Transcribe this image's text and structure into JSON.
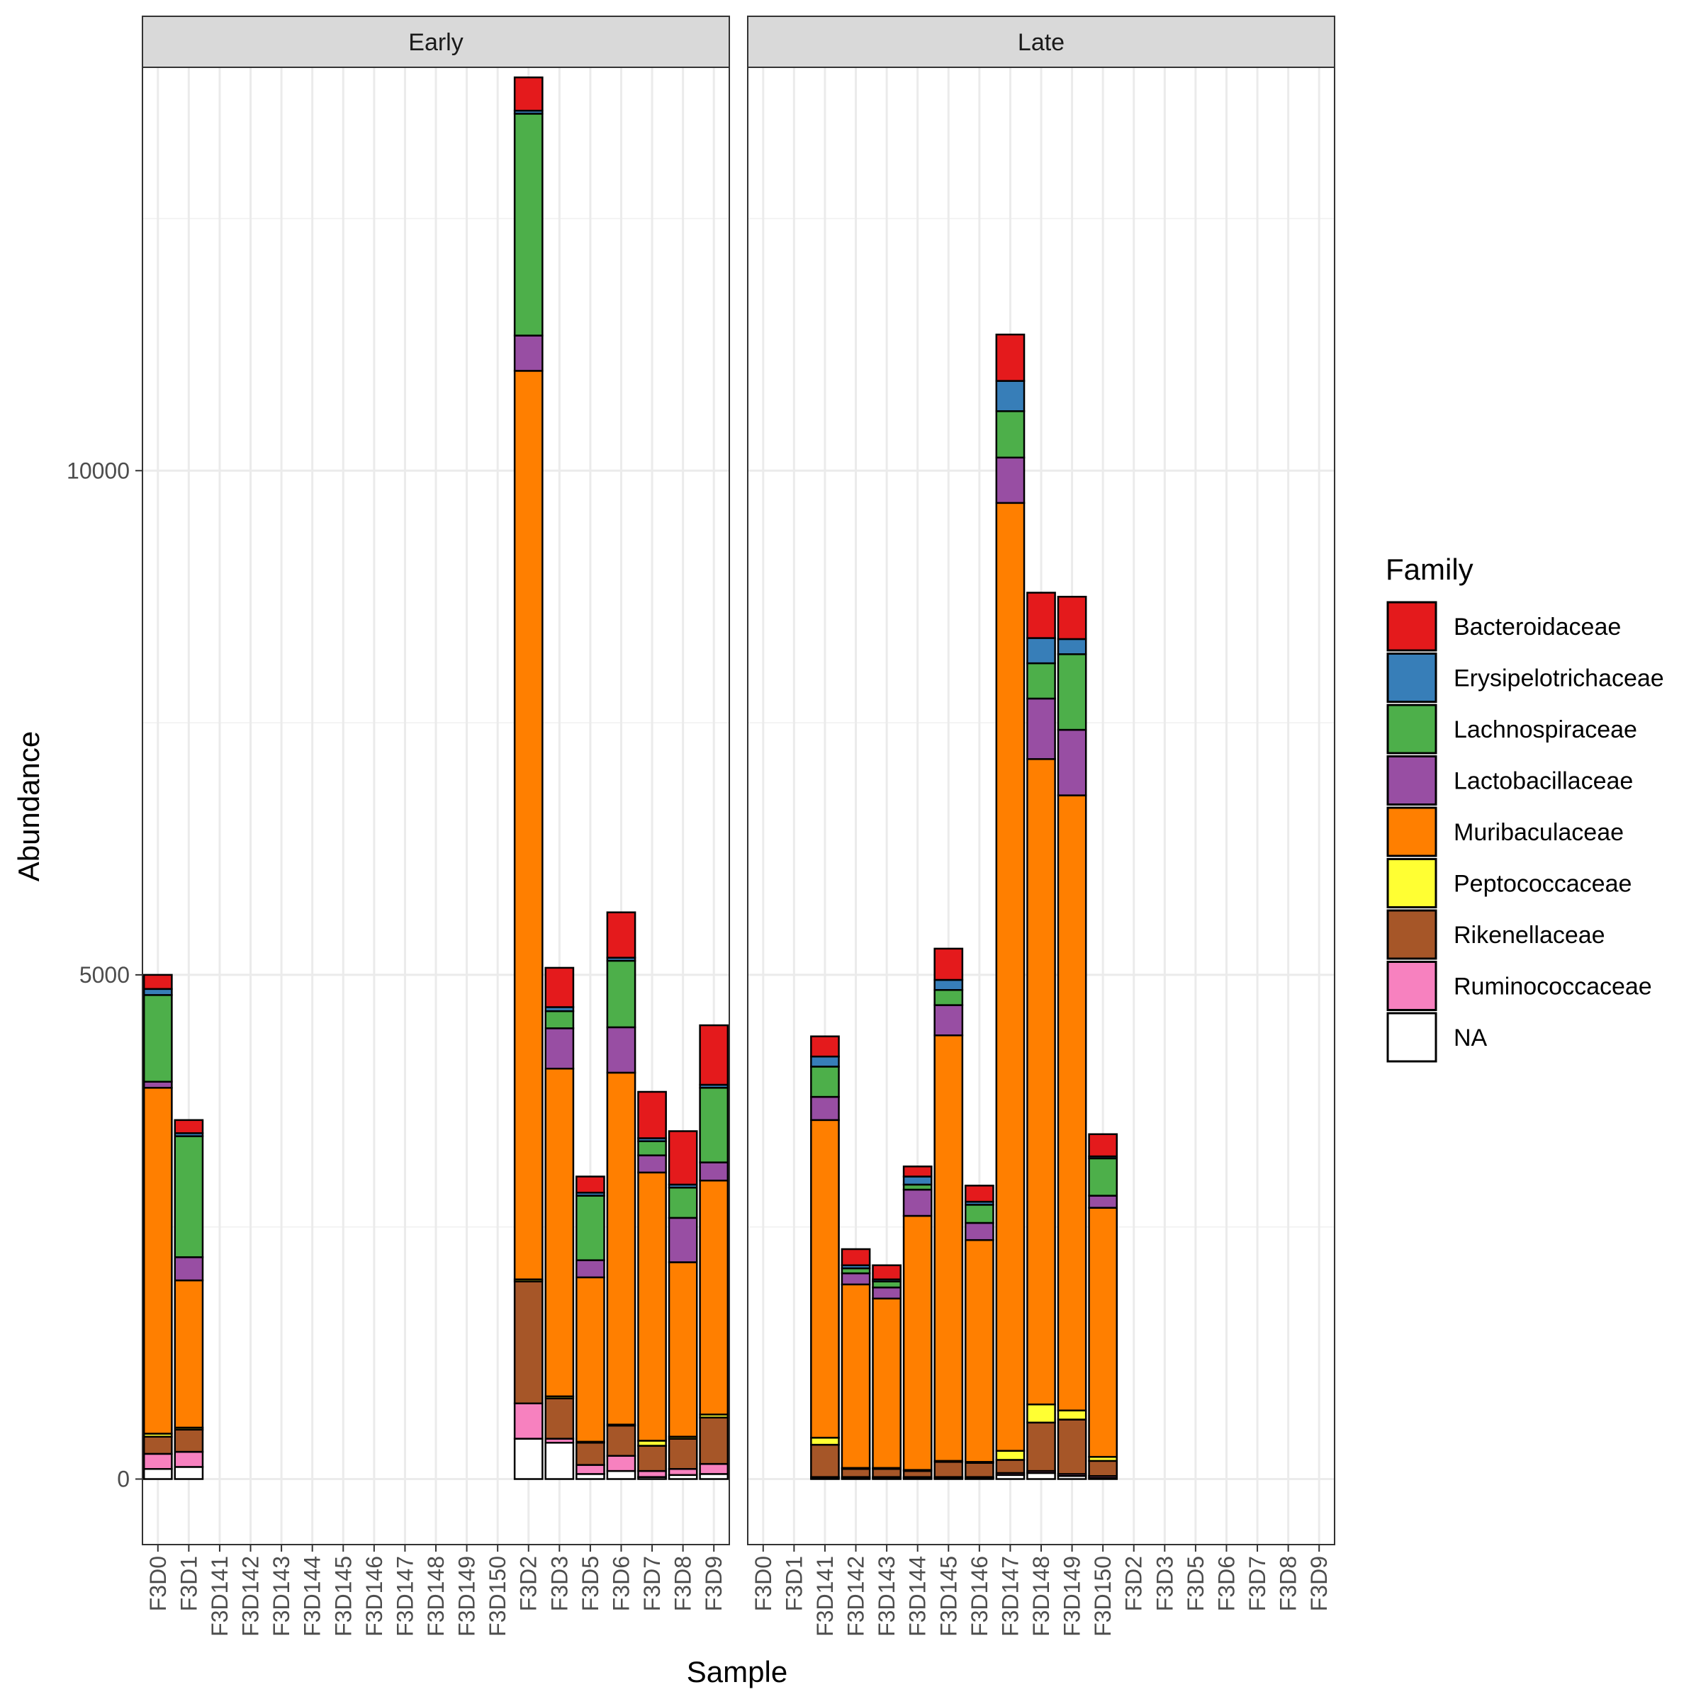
{
  "chart_data": {
    "type": "bar",
    "stacked": true,
    "xlabel": "Sample",
    "ylabel": "Abundance",
    "ylim": [
      -650,
      14000
    ],
    "y_ticks": [
      0,
      5000,
      10000
    ],
    "y_tick_labels": [
      "0",
      "5000",
      "10000"
    ],
    "grid": true,
    "legend_position": "right",
    "legend_title": "Family",
    "legend": [
      {
        "name": "Bacteroidaceae",
        "color": "#E41A1C"
      },
      {
        "name": "Erysipelotrichaceae",
        "color": "#377EB8"
      },
      {
        "name": "Lachnospiraceae",
        "color": "#4DAF4A"
      },
      {
        "name": "Lactobacillaceae",
        "color": "#984EA3"
      },
      {
        "name": "Muribaculaceae",
        "color": "#FF7F00"
      },
      {
        "name": "Peptococcaceae",
        "color": "#FFFF33"
      },
      {
        "name": "Rikenellaceae",
        "color": "#A65628"
      },
      {
        "name": "Ruminococcaceae",
        "color": "#F781BF"
      },
      {
        "name": "NA",
        "color": "#FFFFFF"
      }
    ],
    "categories": [
      "F3D0",
      "F3D1",
      "F3D141",
      "F3D142",
      "F3D143",
      "F3D144",
      "F3D145",
      "F3D146",
      "F3D147",
      "F3D148",
      "F3D149",
      "F3D150",
      "F3D2",
      "F3D3",
      "F3D5",
      "F3D6",
      "F3D7",
      "F3D8",
      "F3D9"
    ],
    "facets": [
      {
        "label": "Early",
        "bars": {
          "F3D0": [
            [
              "NA",
              100
            ],
            [
              "Ruminococcaceae",
              150
            ],
            [
              "Rikenellaceae",
              170
            ],
            [
              "Peptococcaceae",
              30
            ],
            [
              "Muribaculaceae",
              3430
            ],
            [
              "Lactobacillaceae",
              60
            ],
            [
              "Lachnospiraceae",
              860
            ],
            [
              "Erysipelotrichaceae",
              60
            ],
            [
              "Bacteroidaceae",
              140
            ]
          ],
          "F3D1": [
            [
              "NA",
              120
            ],
            [
              "Ruminococcaceae",
              150
            ],
            [
              "Rikenellaceae",
              220
            ],
            [
              "Peptococcaceae",
              20
            ],
            [
              "Muribaculaceae",
              1460
            ],
            [
              "Lactobacillaceae",
              230
            ],
            [
              "Lachnospiraceae",
              1200
            ],
            [
              "Erysipelotrichaceae",
              30
            ],
            [
              "Bacteroidaceae",
              130
            ]
          ],
          "F3D2": [
            [
              "NA",
              400
            ],
            [
              "Ruminococcaceae",
              350
            ],
            [
              "Rikenellaceae",
              1210
            ],
            [
              "Peptococcaceae",
              20
            ],
            [
              "Muribaculaceae",
              9010
            ],
            [
              "Lactobacillaceae",
              350
            ],
            [
              "Lachnospiraceae",
              2200
            ],
            [
              "Erysipelotrichaceae",
              30
            ],
            [
              "Bacteroidaceae",
              330
            ]
          ],
          "F3D3": [
            [
              "NA",
              360
            ],
            [
              "Ruminococcaceae",
              40
            ],
            [
              "Rikenellaceae",
              400
            ],
            [
              "Peptococcaceae",
              20
            ],
            [
              "Muribaculaceae",
              3250
            ],
            [
              "Lactobacillaceae",
              400
            ],
            [
              "Lachnospiraceae",
              170
            ],
            [
              "Erysipelotrichaceae",
              40
            ],
            [
              "Bacteroidaceae",
              390
            ]
          ],
          "F3D5": [
            [
              "NA",
              50
            ],
            [
              "Ruminococcaceae",
              90
            ],
            [
              "Rikenellaceae",
              220
            ],
            [
              "Peptococcaceae",
              10
            ],
            [
              "Muribaculaceae",
              1630
            ],
            [
              "Lactobacillaceae",
              170
            ],
            [
              "Lachnospiraceae",
              640
            ],
            [
              "Erysipelotrichaceae",
              30
            ],
            [
              "Bacteroidaceae",
              160
            ]
          ],
          "F3D6": [
            [
              "NA",
              80
            ],
            [
              "Ruminococcaceae",
              150
            ],
            [
              "Rikenellaceae",
              300
            ],
            [
              "Peptococcaceae",
              10
            ],
            [
              "Muribaculaceae",
              3490
            ],
            [
              "Lactobacillaceae",
              450
            ],
            [
              "Lachnospiraceae",
              660
            ],
            [
              "Erysipelotrichaceae",
              30
            ],
            [
              "Bacteroidaceae",
              450
            ]
          ],
          "F3D7": [
            [
              "NA",
              20
            ],
            [
              "Ruminococcaceae",
              60
            ],
            [
              "Rikenellaceae",
              250
            ],
            [
              "Peptococcaceae",
              50
            ],
            [
              "Muribaculaceae",
              2660
            ],
            [
              "Lactobacillaceae",
              170
            ],
            [
              "Lachnospiraceae",
              140
            ],
            [
              "Erysipelotrichaceae",
              30
            ],
            [
              "Bacteroidaceae",
              460
            ]
          ],
          "F3D8": [
            [
              "NA",
              40
            ],
            [
              "Ruminococcaceae",
              60
            ],
            [
              "Rikenellaceae",
              300
            ],
            [
              "Peptococcaceae",
              20
            ],
            [
              "Muribaculaceae",
              1730
            ],
            [
              "Lactobacillaceae",
              440
            ],
            [
              "Lachnospiraceae",
              300
            ],
            [
              "Erysipelotrichaceae",
              30
            ],
            [
              "Bacteroidaceae",
              530
            ]
          ],
          "F3D9": [
            [
              "NA",
              50
            ],
            [
              "Ruminococcaceae",
              100
            ],
            [
              "Rikenellaceae",
              460
            ],
            [
              "Peptococcaceae",
              30
            ],
            [
              "Muribaculaceae",
              2320
            ],
            [
              "Lactobacillaceae",
              180
            ],
            [
              "Lachnospiraceae",
              740
            ],
            [
              "Erysipelotrichaceae",
              30
            ],
            [
              "Bacteroidaceae",
              590
            ]
          ]
        }
      },
      {
        "label": "Late",
        "bars": {
          "F3D141": [
            [
              "NA",
              10
            ],
            [
              "Ruminococcaceae",
              10
            ],
            [
              "Rikenellaceae",
              320
            ],
            [
              "Peptococcaceae",
              70
            ],
            [
              "Muribaculaceae",
              3150
            ],
            [
              "Lactobacillaceae",
              230
            ],
            [
              "Lachnospiraceae",
              300
            ],
            [
              "Erysipelotrichaceae",
              100
            ],
            [
              "Bacteroidaceae",
              200
            ]
          ],
          "F3D142": [
            [
              "NA",
              10
            ],
            [
              "Ruminococcaceae",
              10
            ],
            [
              "Rikenellaceae",
              80
            ],
            [
              "Peptococcaceae",
              10
            ],
            [
              "Muribaculaceae",
              1820
            ],
            [
              "Lactobacillaceae",
              110
            ],
            [
              "Lachnospiraceae",
              50
            ],
            [
              "Erysipelotrichaceae",
              30
            ],
            [
              "Bacteroidaceae",
              160
            ]
          ],
          "F3D143": [
            [
              "NA",
              10
            ],
            [
              "Ruminococcaceae",
              10
            ],
            [
              "Rikenellaceae",
              80
            ],
            [
              "Peptococcaceae",
              10
            ],
            [
              "Muribaculaceae",
              1680
            ],
            [
              "Lactobacillaceae",
              110
            ],
            [
              "Lachnospiraceae",
              60
            ],
            [
              "Erysipelotrichaceae",
              20
            ],
            [
              "Bacteroidaceae",
              140
            ]
          ],
          "F3D144": [
            [
              "NA",
              10
            ],
            [
              "Ruminococcaceae",
              10
            ],
            [
              "Rikenellaceae",
              60
            ],
            [
              "Peptococcaceae",
              10
            ],
            [
              "Muribaculaceae",
              2520
            ],
            [
              "Lactobacillaceae",
              260
            ],
            [
              "Lachnospiraceae",
              50
            ],
            [
              "Erysipelotrichaceae",
              80
            ],
            [
              "Bacteroidaceae",
              100
            ]
          ],
          "F3D145": [
            [
              "NA",
              10
            ],
            [
              "Ruminococcaceae",
              10
            ],
            [
              "Rikenellaceae",
              150
            ],
            [
              "Peptococcaceae",
              10
            ],
            [
              "Muribaculaceae",
              4220
            ],
            [
              "Lactobacillaceae",
              300
            ],
            [
              "Lachnospiraceae",
              150
            ],
            [
              "Erysipelotrichaceae",
              100
            ],
            [
              "Bacteroidaceae",
              310
            ]
          ],
          "F3D146": [
            [
              "NA",
              10
            ],
            [
              "Ruminococcaceae",
              10
            ],
            [
              "Rikenellaceae",
              140
            ],
            [
              "Peptococcaceae",
              10
            ],
            [
              "Muribaculaceae",
              2200
            ],
            [
              "Lactobacillaceae",
              170
            ],
            [
              "Lachnospiraceae",
              180
            ],
            [
              "Erysipelotrichaceae",
              30
            ],
            [
              "Bacteroidaceae",
              160
            ]
          ],
          "F3D147": [
            [
              "NA",
              40
            ],
            [
              "Ruminococcaceae",
              20
            ],
            [
              "Rikenellaceae",
              130
            ],
            [
              "Peptococcaceae",
              90
            ],
            [
              "Muribaculaceae",
              9400
            ],
            [
              "Lactobacillaceae",
              450
            ],
            [
              "Lachnospiraceae",
              460
            ],
            [
              "Erysipelotrichaceae",
              300
            ],
            [
              "Bacteroidaceae",
              460
            ]
          ],
          "F3D148": [
            [
              "NA",
              60
            ],
            [
              "Ruminococcaceae",
              20
            ],
            [
              "Rikenellaceae",
              480
            ],
            [
              "Peptococcaceae",
              180
            ],
            [
              "Muribaculaceae",
              6400
            ],
            [
              "Lactobacillaceae",
              600
            ],
            [
              "Lachnospiraceae",
              350
            ],
            [
              "Erysipelotrichaceae",
              250
            ],
            [
              "Bacteroidaceae",
              450
            ]
          ],
          "F3D149": [
            [
              "NA",
              30
            ],
            [
              "Ruminococcaceae",
              20
            ],
            [
              "Rikenellaceae",
              540
            ],
            [
              "Peptococcaceae",
              90
            ],
            [
              "Muribaculaceae",
              6100
            ],
            [
              "Lactobacillaceae",
              650
            ],
            [
              "Lachnospiraceae",
              750
            ],
            [
              "Erysipelotrichaceae",
              150
            ],
            [
              "Bacteroidaceae",
              420
            ]
          ],
          "F3D150": [
            [
              "NA",
              10
            ],
            [
              "Ruminococcaceae",
              20
            ],
            [
              "Rikenellaceae",
              150
            ],
            [
              "Peptococcaceae",
              40
            ],
            [
              "Muribaculaceae",
              2470
            ],
            [
              "Lactobacillaceae",
              120
            ],
            [
              "Lachnospiraceae",
              370
            ],
            [
              "Erysipelotrichaceae",
              20
            ],
            [
              "Bacteroidaceae",
              220
            ]
          ]
        }
      }
    ]
  }
}
